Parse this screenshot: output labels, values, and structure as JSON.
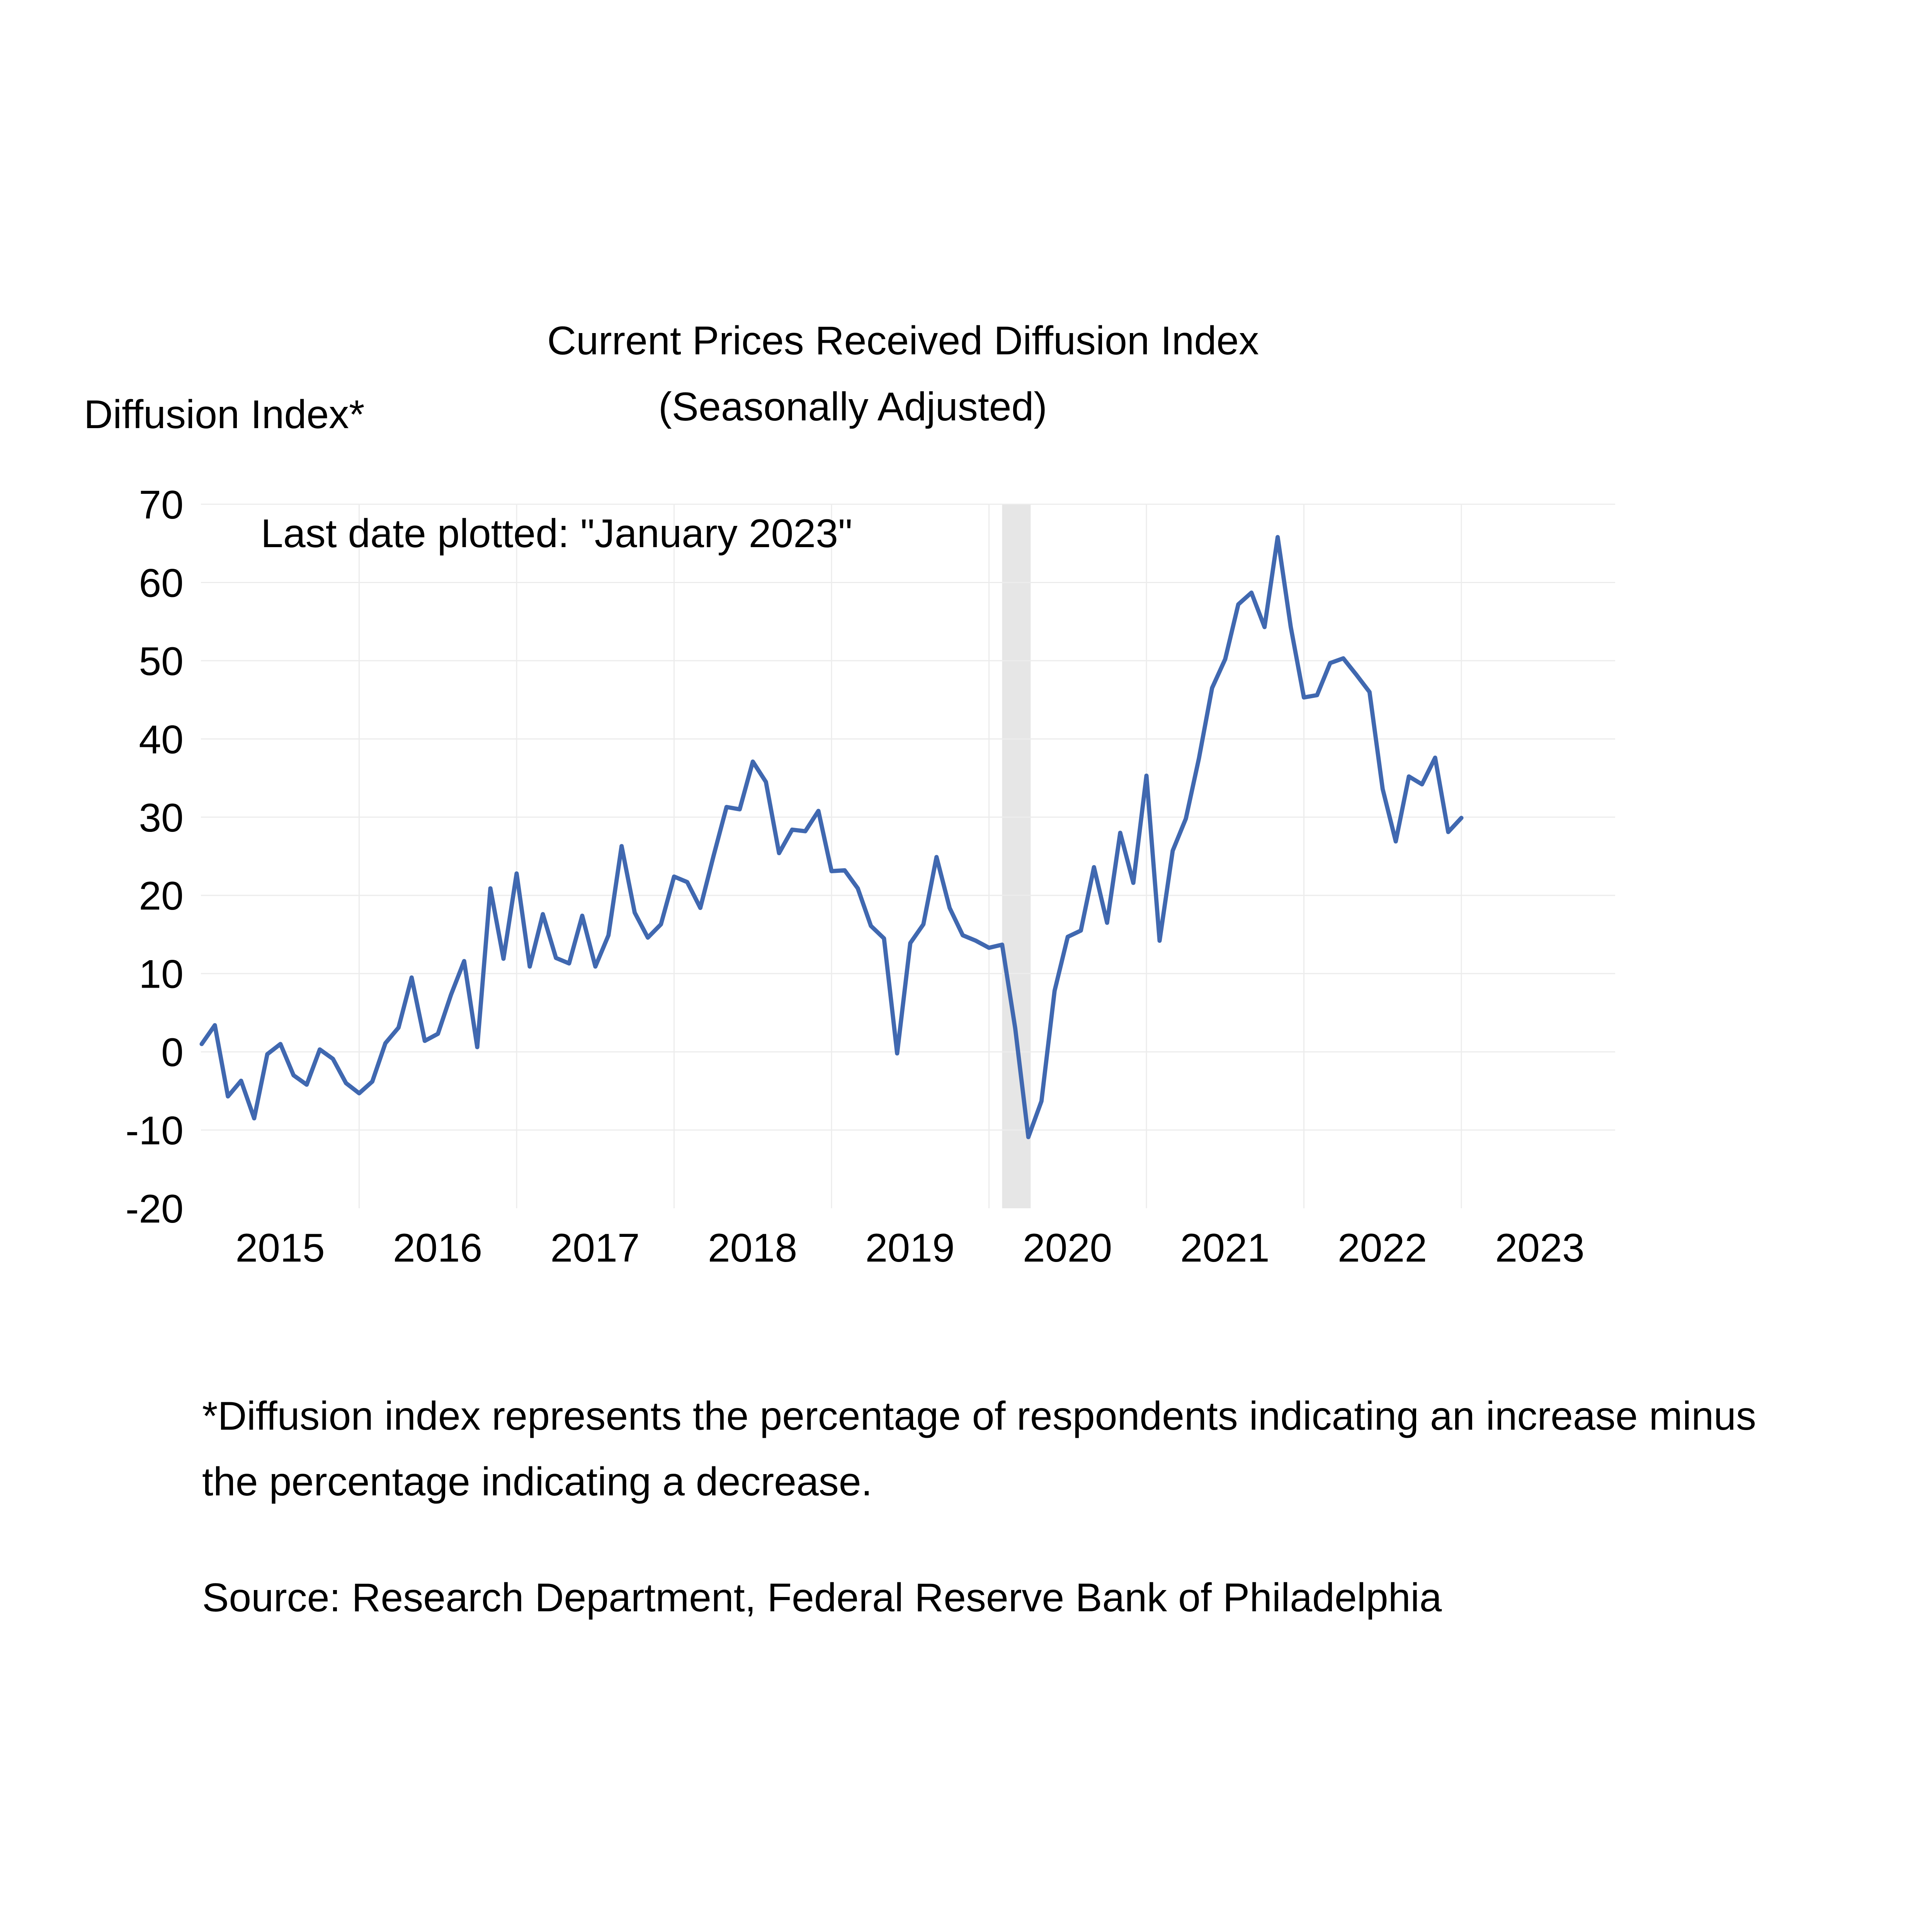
{
  "chart_data": {
    "type": "line",
    "title": "Current Prices Received Diffusion Index",
    "subtitle": "(Seasonally Adjusted)",
    "ylabel": "Diffusion Index*",
    "xlabel": "",
    "annotation": "Last date plotted: \"January 2023\"",
    "ylim": [
      -20,
      70
    ],
    "yticks": [
      70,
      60,
      50,
      40,
      30,
      20,
      10,
      0,
      -10,
      -20
    ],
    "xticks": [
      "2015",
      "2016",
      "2017",
      "2018",
      "2019",
      "2020",
      "2021",
      "2022",
      "2023"
    ],
    "grid": true,
    "legend": "none",
    "line_color": "#4068b0",
    "recession_shading": {
      "start": "2020-02",
      "end": "2020-04",
      "color": "#e6e6e6"
    },
    "start": "2015-01",
    "end": "2023-01",
    "series": [
      {
        "values": [
          1.0,
          3.4,
          -5.7,
          -3.7,
          -8.5,
          -0.3,
          1.0,
          -3.0,
          -4.2,
          0.3,
          -0.9,
          -4.0,
          -5.3,
          -3.8,
          1.1,
          3.1,
          9.5,
          1.4,
          2.3,
          7.3,
          11.6,
          0.6,
          20.9,
          11.9,
          22.8,
          10.9,
          17.6,
          12.0,
          11.3,
          17.4,
          10.9,
          14.9,
          26.3,
          17.8,
          14.6,
          16.3,
          22.4,
          21.7,
          18.4,
          25.0,
          31.3,
          31.0,
          37.1,
          34.5,
          25.4,
          28.4,
          28.2,
          30.8,
          23.1,
          23.2,
          20.9,
          16.1,
          14.5,
          -0.2,
          13.9,
          16.3,
          24.9,
          18.4,
          14.9,
          14.2,
          13.3,
          13.7,
          3.0,
          -10.9,
          -6.3,
          7.8,
          14.7,
          15.5,
          23.6,
          16.5,
          28.0,
          21.6,
          35.3,
          14.2,
          25.7,
          29.8,
          37.5,
          46.5,
          50.2,
          57.2,
          58.7,
          54.3,
          65.8,
          54.3,
          45.3,
          45.6,
          49.7,
          50.3,
          48.2,
          46.0,
          33.6,
          26.9,
          35.2,
          34.2,
          37.6,
          28.1,
          29.9
        ]
      }
    ]
  },
  "footnote": {
    "definition_line1": "*Diffusion index represents the percentage of respondents indicating an increase minus",
    "definition_line2": "the percentage indicating a decrease.",
    "source": "Source: Research Department, Federal Reserve Bank of Philadelphia"
  }
}
